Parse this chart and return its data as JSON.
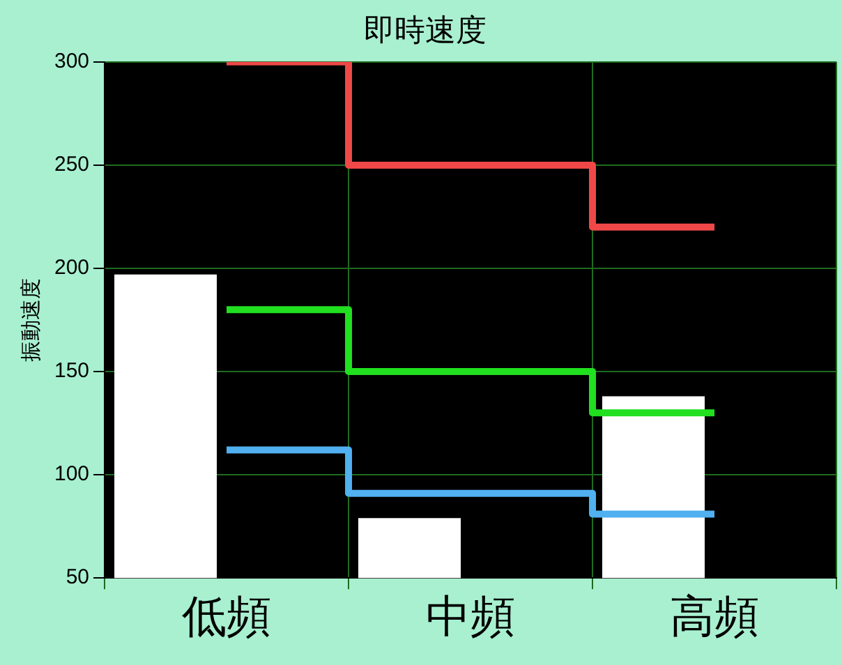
{
  "chart_data": {
    "type": "bar",
    "title": "即時速度",
    "ylabel": "振動速度",
    "categories": [
      "低頻",
      "中頻",
      "高頻"
    ],
    "ylim": [
      50,
      300
    ],
    "yticks": [
      50,
      100,
      150,
      200,
      250,
      300
    ],
    "grid": true,
    "legend": false,
    "marker": "none",
    "series": [
      {
        "color": "#ffffff",
        "values": [
          197,
          79,
          138
        ]
      },
      {
        "type": "step",
        "color": "#f04848",
        "values": [
          300,
          250,
          220
        ]
      },
      {
        "type": "step",
        "color": "#20e020",
        "values": [
          180,
          150,
          130
        ]
      },
      {
        "type": "step",
        "color": "#50b0f0",
        "values": [
          112,
          91,
          81
        ]
      }
    ]
  }
}
